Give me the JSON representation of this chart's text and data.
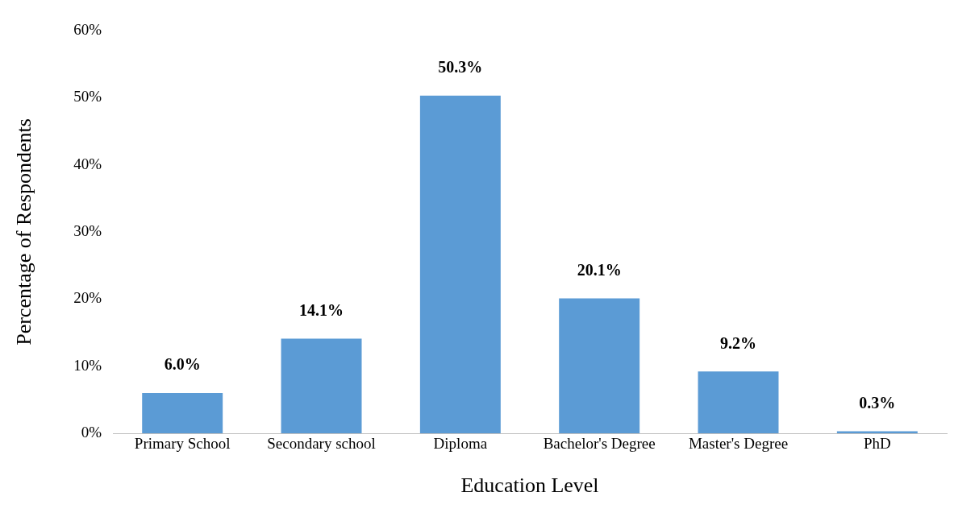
{
  "chart_data": {
    "type": "bar",
    "xlabel": "Education Level",
    "ylabel": "Percentage of Respondents",
    "categories": [
      "Primary School",
      "Secondary school",
      "Diploma",
      "Bachelor's Degree",
      "Master's Degree",
      "PhD"
    ],
    "values": [
      6.0,
      14.1,
      50.3,
      20.1,
      9.2,
      0.3
    ],
    "value_labels": [
      "6.0%",
      "14.1%",
      "50.3%",
      "20.1%",
      "9.2%",
      "0.3%"
    ],
    "color": "#5b9bd5",
    "ylim": [
      0,
      60
    ],
    "yticks": [
      {
        "value": 0,
        "label": "0%"
      },
      {
        "value": 10,
        "label": "10%"
      },
      {
        "value": 20,
        "label": "20%"
      },
      {
        "value": 30,
        "label": "30%"
      },
      {
        "value": 40,
        "label": "40%"
      },
      {
        "value": 50,
        "label": "50%"
      },
      {
        "value": 60,
        "label": "60%"
      }
    ],
    "grid": false,
    "legend": false
  }
}
